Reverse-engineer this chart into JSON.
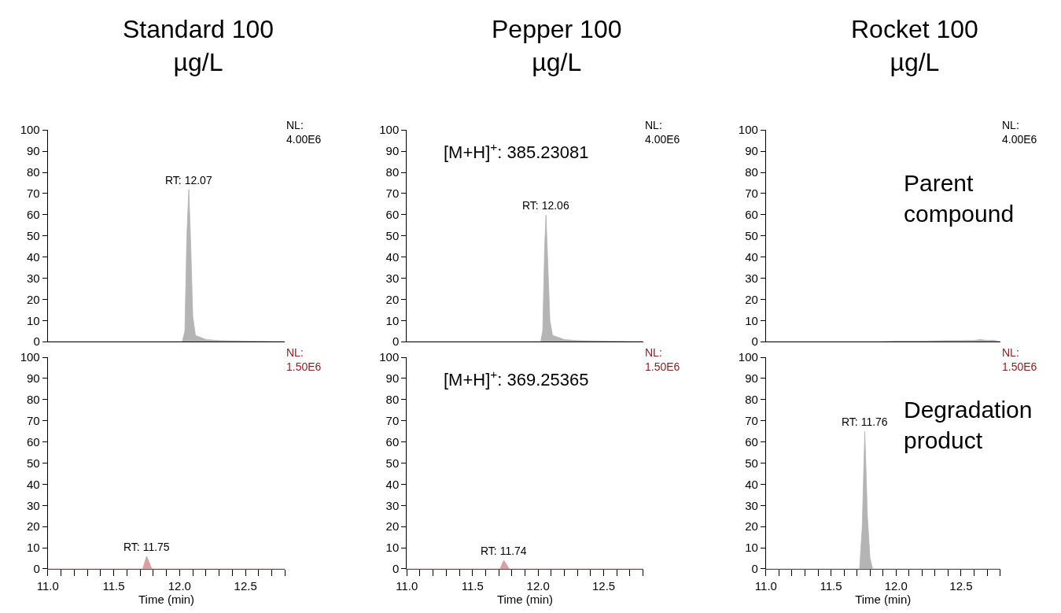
{
  "chart_data": [
    {
      "type": "area",
      "title": "Standard 100\nµg/L",
      "xlim": [
        11.0,
        12.8
      ],
      "ylim": [
        0,
        100
      ],
      "yticks": [
        0,
        10,
        20,
        30,
        40,
        50,
        60,
        70,
        80,
        90,
        100
      ],
      "tick_labels": "y",
      "series": [
        {
          "color": "#b4b4b4",
          "x": [
            11.0,
            12.0,
            12.02,
            12.04,
            12.055,
            12.07,
            12.085,
            12.1,
            12.12,
            12.2,
            12.3,
            12.8
          ],
          "values": [
            0,
            0,
            0,
            5,
            50,
            72,
            45,
            12,
            3,
            1,
            0.5,
            0
          ]
        }
      ],
      "annotations": [
        "NL:\n4.00E6",
        {
          "text": "RT: 12.07",
          "x": 12.07,
          "y": 72
        }
      ]
    },
    {
      "type": "area",
      "title": "Pepper 100\nµg/L",
      "xlim": [
        11.0,
        12.8
      ],
      "ylim": [
        0,
        100
      ],
      "yticks": [
        0,
        10,
        20,
        30,
        40,
        50,
        60,
        70,
        80,
        90,
        100
      ],
      "tick_labels": "y",
      "series": [
        {
          "color": "#b4b4b4",
          "x": [
            11.0,
            12.0,
            12.02,
            12.035,
            12.05,
            12.06,
            12.075,
            12.09,
            12.11,
            12.2,
            12.3,
            12.8
          ],
          "values": [
            0,
            0,
            0,
            5,
            45,
            60,
            35,
            10,
            3,
            1,
            0.5,
            0
          ]
        }
      ],
      "annotations": [
        "NL:\n4.00E6",
        "[M+H]$^{+}$: 385.23081",
        {
          "text": "RT: 12.06",
          "x": 12.06,
          "y": 60
        }
      ]
    },
    {
      "type": "area",
      "title": "Rocket 100\nµg/L",
      "xlim": [
        11.0,
        12.8
      ],
      "ylim": [
        0,
        100
      ],
      "yticks": [
        0,
        10,
        20,
        30,
        40,
        50,
        60,
        70,
        80,
        90,
        100
      ],
      "tick_labels": "y",
      "series": [
        {
          "color": "#b4b4b4",
          "x": [
            11.0,
            11.9,
            12.0,
            12.2,
            12.3,
            12.4,
            12.5,
            12.6,
            12.65,
            12.7,
            12.75,
            12.8
          ],
          "values": [
            0,
            0,
            0.3,
            0.3,
            0.4,
            0.5,
            0.5,
            0.6,
            1,
            0.6,
            0.7,
            0
          ]
        }
      ],
      "annotations": [
        "NL:\n4.00E6",
        "Parent\ncompound"
      ]
    },
    {
      "type": "area",
      "xlabel": "Time (min)",
      "xlim": [
        11.0,
        12.8
      ],
      "ylim": [
        0,
        100
      ],
      "xticks": [
        {
          "value": 11.0,
          "label": "11.0"
        },
        {
          "value": 11.1,
          "label": null
        },
        {
          "value": 11.2,
          "label": null
        },
        {
          "value": 11.3,
          "label": null
        },
        {
          "value": 11.4,
          "label": null
        },
        {
          "value": 11.5,
          "label": "11.5"
        },
        {
          "value": 11.6,
          "label": null
        },
        {
          "value": 11.7,
          "label": null
        },
        {
          "value": 11.8,
          "label": null
        },
        {
          "value": 11.9,
          "label": null
        },
        {
          "value": 12.0,
          "label": "12.0"
        },
        {
          "value": 12.1,
          "label": null
        },
        {
          "value": 12.2,
          "label": null
        },
        {
          "value": 12.3,
          "label": null
        },
        {
          "value": 12.4,
          "label": null
        },
        {
          "value": 12.5,
          "label": "12.5"
        },
        {
          "value": 12.6,
          "label": null
        },
        {
          "value": 12.7,
          "label": null
        },
        {
          "value": 12.8,
          "label": null
        }
      ],
      "yticks": [
        0,
        10,
        20,
        30,
        40,
        50,
        60,
        70,
        80,
        90,
        100
      ],
      "series": [
        {
          "color": "#d8a0a0",
          "x": [
            11.0,
            11.72,
            11.74,
            11.75,
            11.77,
            11.79,
            12.8
          ],
          "values": [
            0,
            0,
            4,
            6,
            3,
            0,
            0
          ]
        }
      ],
      "annotations": [
        "NL:\n1.50E6",
        {
          "text": "RT: 11.75",
          "x": 11.75,
          "y": 6
        }
      ]
    },
    {
      "type": "area",
      "xlabel": "Time (min)",
      "xlim": [
        11.0,
        12.8
      ],
      "ylim": [
        0,
        100
      ],
      "xticks": [
        {
          "value": 11.0,
          "label": "11.0"
        },
        {
          "value": 11.1,
          "label": null
        },
        {
          "value": 11.2,
          "label": null
        },
        {
          "value": 11.3,
          "label": null
        },
        {
          "value": 11.4,
          "label": null
        },
        {
          "value": 11.5,
          "label": "11.5"
        },
        {
          "value": 11.6,
          "label": null
        },
        {
          "value": 11.7,
          "label": null
        },
        {
          "value": 11.8,
          "label": null
        },
        {
          "value": 11.9,
          "label": null
        },
        {
          "value": 12.0,
          "label": "12.0"
        },
        {
          "value": 12.1,
          "label": null
        },
        {
          "value": 12.2,
          "label": null
        },
        {
          "value": 12.3,
          "label": null
        },
        {
          "value": 12.4,
          "label": null
        },
        {
          "value": 12.5,
          "label": "12.5"
        },
        {
          "value": 12.6,
          "label": null
        },
        {
          "value": 12.7,
          "label": null
        },
        {
          "value": 12.8,
          "label": null
        }
      ],
      "yticks": [
        0,
        10,
        20,
        30,
        40,
        50,
        60,
        70,
        80,
        90,
        100
      ],
      "series": [
        {
          "color": "#d8a0a0",
          "x": [
            11.0,
            11.71,
            11.73,
            11.74,
            11.76,
            11.78,
            12.8
          ],
          "values": [
            0,
            0,
            3,
            4,
            2,
            0,
            0
          ]
        }
      ],
      "annotations": [
        "NL:\n1.50E6",
        "[M+H]$^{+}$: 369.25365",
        {
          "text": "RT: 11.74",
          "x": 11.74,
          "y": 4
        }
      ]
    },
    {
      "type": "area",
      "xlabel": "Time (min)",
      "xlim": [
        11.0,
        12.8
      ],
      "ylim": [
        0,
        100
      ],
      "xticks": [
        {
          "value": 11.0,
          "label": "11.0"
        },
        {
          "value": 11.1,
          "label": null
        },
        {
          "value": 11.2,
          "label": null
        },
        {
          "value": 11.3,
          "label": null
        },
        {
          "value": 11.4,
          "label": null
        },
        {
          "value": 11.5,
          "label": "11.5"
        },
        {
          "value": 11.6,
          "label": null
        },
        {
          "value": 11.7,
          "label": null
        },
        {
          "value": 11.8,
          "label": null
        },
        {
          "value": 11.9,
          "label": null
        },
        {
          "value": 12.0,
          "label": "12.0"
        },
        {
          "value": 12.1,
          "label": null
        },
        {
          "value": 12.2,
          "label": null
        },
        {
          "value": 12.3,
          "label": null
        },
        {
          "value": 12.4,
          "label": null
        },
        {
          "value": 12.5,
          "label": "12.5"
        },
        {
          "value": 12.6,
          "label": null
        },
        {
          "value": 12.7,
          "label": null
        },
        {
          "value": 12.8,
          "label": null
        }
      ],
      "yticks": [
        0,
        10,
        20,
        30,
        40,
        50,
        60,
        70,
        80,
        90,
        100
      ],
      "series": [
        {
          "color": "#b4b4b4",
          "x": [
            11.0,
            11.72,
            11.74,
            11.76,
            11.78,
            11.8,
            11.82,
            12.8
          ],
          "values": [
            0,
            0,
            20,
            65,
            25,
            5,
            0,
            0
          ]
        }
      ],
      "annotations": [
        "NL:\n1.50E6",
        {
          "text": "RT: 11.76",
          "x": 11.76,
          "y": 65
        },
        "Degradation\nproduct"
      ]
    }
  ]
}
